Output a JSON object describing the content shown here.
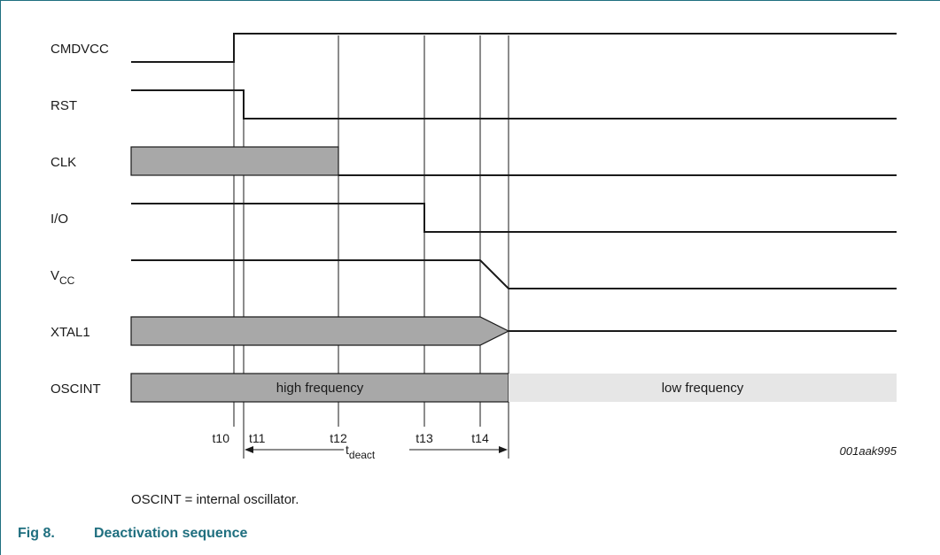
{
  "signals": {
    "cmdvcc": "CMDVCC",
    "rst": "RST",
    "clk": "CLK",
    "io": "I/O",
    "vcc_main": "V",
    "vcc_sub": "CC",
    "xtal1": "XTAL1",
    "oscint": "OSCINT"
  },
  "bands": {
    "high": "high frequency",
    "low": "low frequency"
  },
  "ticks": {
    "t10": "t10",
    "t11": "t11",
    "t12": "t12",
    "t13": "t13",
    "t14": "t14"
  },
  "deact": {
    "main": "t",
    "sub": "deact"
  },
  "ref_code": "001aak995",
  "note": "OSCINT = internal oscillator.",
  "caption": {
    "number": "Fig 8.",
    "title": "Deactivation sequence"
  },
  "colors": {
    "accent": "#1f6f7f",
    "shade_dark": "#a8a8a8",
    "shade_light": "#e6e6e6"
  }
}
